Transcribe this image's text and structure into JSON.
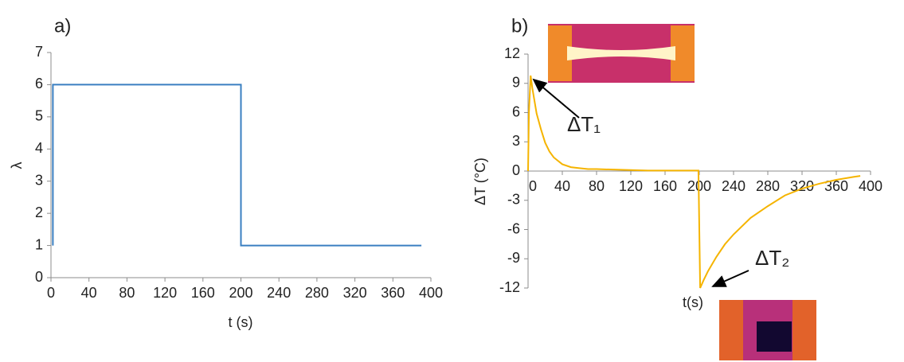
{
  "chart_data": [
    {
      "type": "line",
      "label": "a)",
      "xlabel": "t (s)",
      "ylabel": "λ",
      "x": [
        2,
        2,
        200,
        200,
        390
      ],
      "values": [
        1,
        6,
        6,
        1,
        1
      ],
      "color": "#3a7fc1",
      "xlim": [
        0,
        400
      ],
      "xticks": [
        0,
        40,
        80,
        120,
        160,
        200,
        240,
        280,
        320,
        360,
        400
      ],
      "ylim": [
        0,
        7
      ],
      "yticks": [
        0,
        1,
        2,
        3,
        4,
        5,
        6,
        7
      ]
    },
    {
      "type": "line",
      "label": "b)",
      "xlabel": "t(s)",
      "ylabel": "ΔT (°C)",
      "x": [
        0,
        1,
        3,
        5,
        10,
        15,
        20,
        25,
        30,
        40,
        50,
        60,
        70,
        80,
        100,
        120,
        140,
        160,
        180,
        199,
        201,
        205,
        210,
        220,
        230,
        240,
        260,
        280,
        300,
        320,
        340,
        360,
        380,
        388
      ],
      "values": [
        0,
        6,
        9.8,
        8.5,
        5.9,
        4.3,
        2.9,
        2.0,
        1.4,
        0.7,
        0.4,
        0.3,
        0.2,
        0.2,
        0.15,
        0.1,
        0.05,
        0.05,
        0.05,
        0.05,
        -12,
        -11.2,
        -10.3,
        -8.8,
        -7.5,
        -6.5,
        -4.8,
        -3.6,
        -2.5,
        -1.8,
        -1.3,
        -0.9,
        -0.6,
        -0.5
      ],
      "color": "#f5b400",
      "xlim": [
        0,
        400
      ],
      "xticks": [
        0,
        40,
        80,
        120,
        160,
        200,
        240,
        280,
        320,
        360,
        400
      ],
      "ylim": [
        -12,
        12
      ],
      "yticks": [
        -12,
        -9,
        -6,
        -3,
        0,
        3,
        6,
        9,
        12
      ],
      "annotations": [
        "ΔT₁",
        "ΔT₂"
      ]
    }
  ]
}
